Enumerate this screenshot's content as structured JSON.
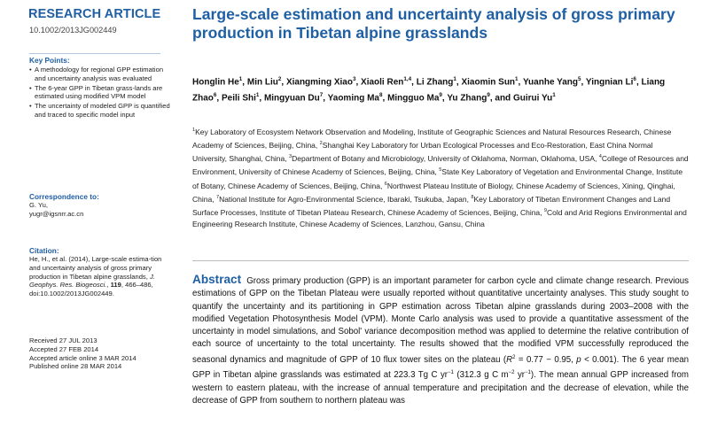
{
  "left": {
    "article_type": "RESEARCH ARTICLE",
    "doi": "10.1002/2013JG002449",
    "key_points": {
      "heading": "Key Points:",
      "items": [
        "A methodology for regional GPP estimation and uncertainty analysis was evaluated",
        "The 6-year GPP in Tibetan grass-lands are estimated using modified VPM model",
        "The uncertainty of modeled GPP is quantified and traced to specific model input"
      ]
    },
    "correspondence": {
      "heading": "Correspondence to:",
      "name": "G. Yu,",
      "email": "yugr@igsnrr.ac.cn"
    },
    "citation": {
      "heading": "Citation:",
      "text_a": "He, H., et al. (2014), Large-scale estima-tion and uncertainty analysis of gross primary production in Tibetan alpine grasslands, ",
      "journal": "J. Geophys. Res. Biogeosci.",
      "text_b": ", ",
      "volume": "119",
      "text_c": ", 466–486, doi:10.1002/2013JG002449."
    },
    "dates": [
      "Received 27 JUL 2013",
      "Accepted 27 FEB 2014",
      "Accepted article online 3 MAR 2014",
      "Published online 28 MAR 2014"
    ]
  },
  "title": "Large-scale estimation and uncertainty analysis of gross primary production in Tibetan alpine grasslands",
  "authors": [
    {
      "name": "Honglin He",
      "sup": "1",
      "sep": ", "
    },
    {
      "name": "Min Liu",
      "sup": "2",
      "sep": ", "
    },
    {
      "name": "Xiangming Xiao",
      "sup": "3",
      "sep": ", "
    },
    {
      "name": "Xiaoli Ren",
      "sup": "1,4",
      "sep": ", "
    },
    {
      "name": "Li Zhang",
      "sup": "1",
      "sep": ", "
    },
    {
      "name": "Xiaomin Sun",
      "sup": "1",
      "sep": ", "
    },
    {
      "name": "Yuanhe Yang",
      "sup": "5",
      "sep": ", "
    },
    {
      "name": "Yingnian Li",
      "sup": "6",
      "sep": ", "
    },
    {
      "name": "Liang Zhao",
      "sup": "6",
      "sep": ", "
    },
    {
      "name": "Peili Shi",
      "sup": "1",
      "sep": ", "
    },
    {
      "name": "Mingyuan Du",
      "sup": "7",
      "sep": ", "
    },
    {
      "name": "Yaoming Ma",
      "sup": "8",
      "sep": ", "
    },
    {
      "name": "Mingguo Ma",
      "sup": "9",
      "sep": ", "
    },
    {
      "name": "Yu Zhang",
      "sup": "9",
      "sep": ", and "
    },
    {
      "name": "Guirui Yu",
      "sup": "1",
      "sep": ""
    }
  ],
  "affiliations": [
    {
      "sup": "1",
      "text": "Key Laboratory of Ecosystem Network Observation and Modeling, Institute of Geographic Sciences and Natural Resources Research, Chinese Academy of Sciences, Beijing, China, "
    },
    {
      "sup": "2",
      "text": "Shanghai Key Laboratory for Urban Ecological Processes and Eco-Restoration, East China Normal University, Shanghai, China, "
    },
    {
      "sup": "3",
      "text": "Department of Botany and Microbiology, University of Oklahoma, Norman, Oklahoma, USA, "
    },
    {
      "sup": "4",
      "text": "College of Resources and Environment, University of Chinese Academy of Sciences, Beijing, China, "
    },
    {
      "sup": "5",
      "text": "State Key Laboratory of Vegetation and Environmental Change, Institute of Botany, Chinese Academy of Sciences, Beijing, China, "
    },
    {
      "sup": "6",
      "text": "Northwest Plateau Institute of Biology, Chinese Academy of Sciences, Xining, Qinghai, China, "
    },
    {
      "sup": "7",
      "text": "National Institute for Agro-Environmental Science, Ibaraki, Tsukuba, Japan, "
    },
    {
      "sup": "8",
      "text": "Key Laboratory of Tibetan Environment Changes and Land Surface Processes, Institute of Tibetan Plateau Research, Chinese Academy of Sciences, Beijing, China, "
    },
    {
      "sup": "9",
      "text": "Cold and Arid Regions Environmental and Engineering Research Institute, Chinese Academy of Sciences, Lanzhou, Gansu, China"
    }
  ],
  "abstract": {
    "label": "Abstract",
    "part1": "Gross primary production (GPP) is an important parameter for carbon cycle and climate change research. Previous estimations of GPP on the Tibetan Plateau were usually reported without quantitative uncertainty analyses. This study sought to quantify the uncertainty and its partitioning in GPP estimation across Tibetan alpine grasslands during 2003–2008 with the modified Vegetation Photosynthesis Model (VPM). Monte Carlo analysis was used to provide a quantitative assessment of the uncertainty in model simulations, and Sobol' variance decomposition method was applied to determine the relative contribution of each source of uncertainty to the total uncertainty. The results showed that the modified VPM successfully reproduced the seasonal dynamics and magnitude of GPP of 10 flux tower sites on the plateau (",
    "r2_symbol": "R",
    "r2_exp": "2",
    "part2": " = 0.77 − 0.95, ",
    "p_symbol": "p",
    "part3": " < 0.001). The 6 year mean GPP in Tibetan alpine grasslands was estimated at 223.3 Tg C yr",
    "exp_a": "−1",
    "part4": " (312.3 g C m",
    "exp_b": "−2",
    "part5": " yr",
    "exp_c": "−1",
    "part6": "). The mean annual GPP increased from western to eastern plateau, with the increase of annual temperature and precipitation and the decrease of elevation, while the decrease of GPP from southern to northern plateau was"
  }
}
